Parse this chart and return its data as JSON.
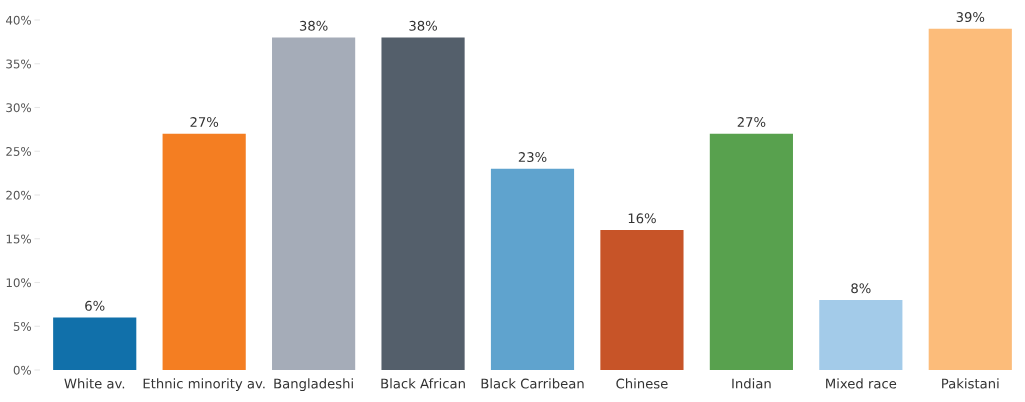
{
  "chart_data": {
    "type": "bar",
    "categories": [
      "White av.",
      "Ethnic minority av.",
      "Bangladeshi",
      "Black African",
      "Black Carribean",
      "Chinese",
      "Indian",
      "Mixed race",
      "Pakistani"
    ],
    "values": [
      6,
      27,
      38,
      38,
      23,
      16,
      27,
      8,
      39
    ],
    "value_labels": [
      "6%",
      "27%",
      "38%",
      "38%",
      "23%",
      "16%",
      "27%",
      "8%",
      "39%"
    ],
    "colors": [
      "#1170aa",
      "#f47e22",
      "#a5acb8",
      "#545f6b",
      "#5fa3ce",
      "#c75428",
      "#58a14e",
      "#a3cbe9",
      "#fcbc7a"
    ],
    "ylim": [
      0,
      40
    ],
    "yticks": [
      {
        "value": 0,
        "label": "0%"
      },
      {
        "value": 5,
        "label": "5%"
      },
      {
        "value": 10,
        "label": "10%"
      },
      {
        "value": 15,
        "label": "15%"
      },
      {
        "value": 20,
        "label": "20%"
      },
      {
        "value": 25,
        "label": "25%"
      },
      {
        "value": 30,
        "label": "30%"
      },
      {
        "value": 35,
        "label": "35%"
      },
      {
        "value": 40,
        "label": "40%"
      }
    ],
    "grid": false,
    "legend": false
  }
}
